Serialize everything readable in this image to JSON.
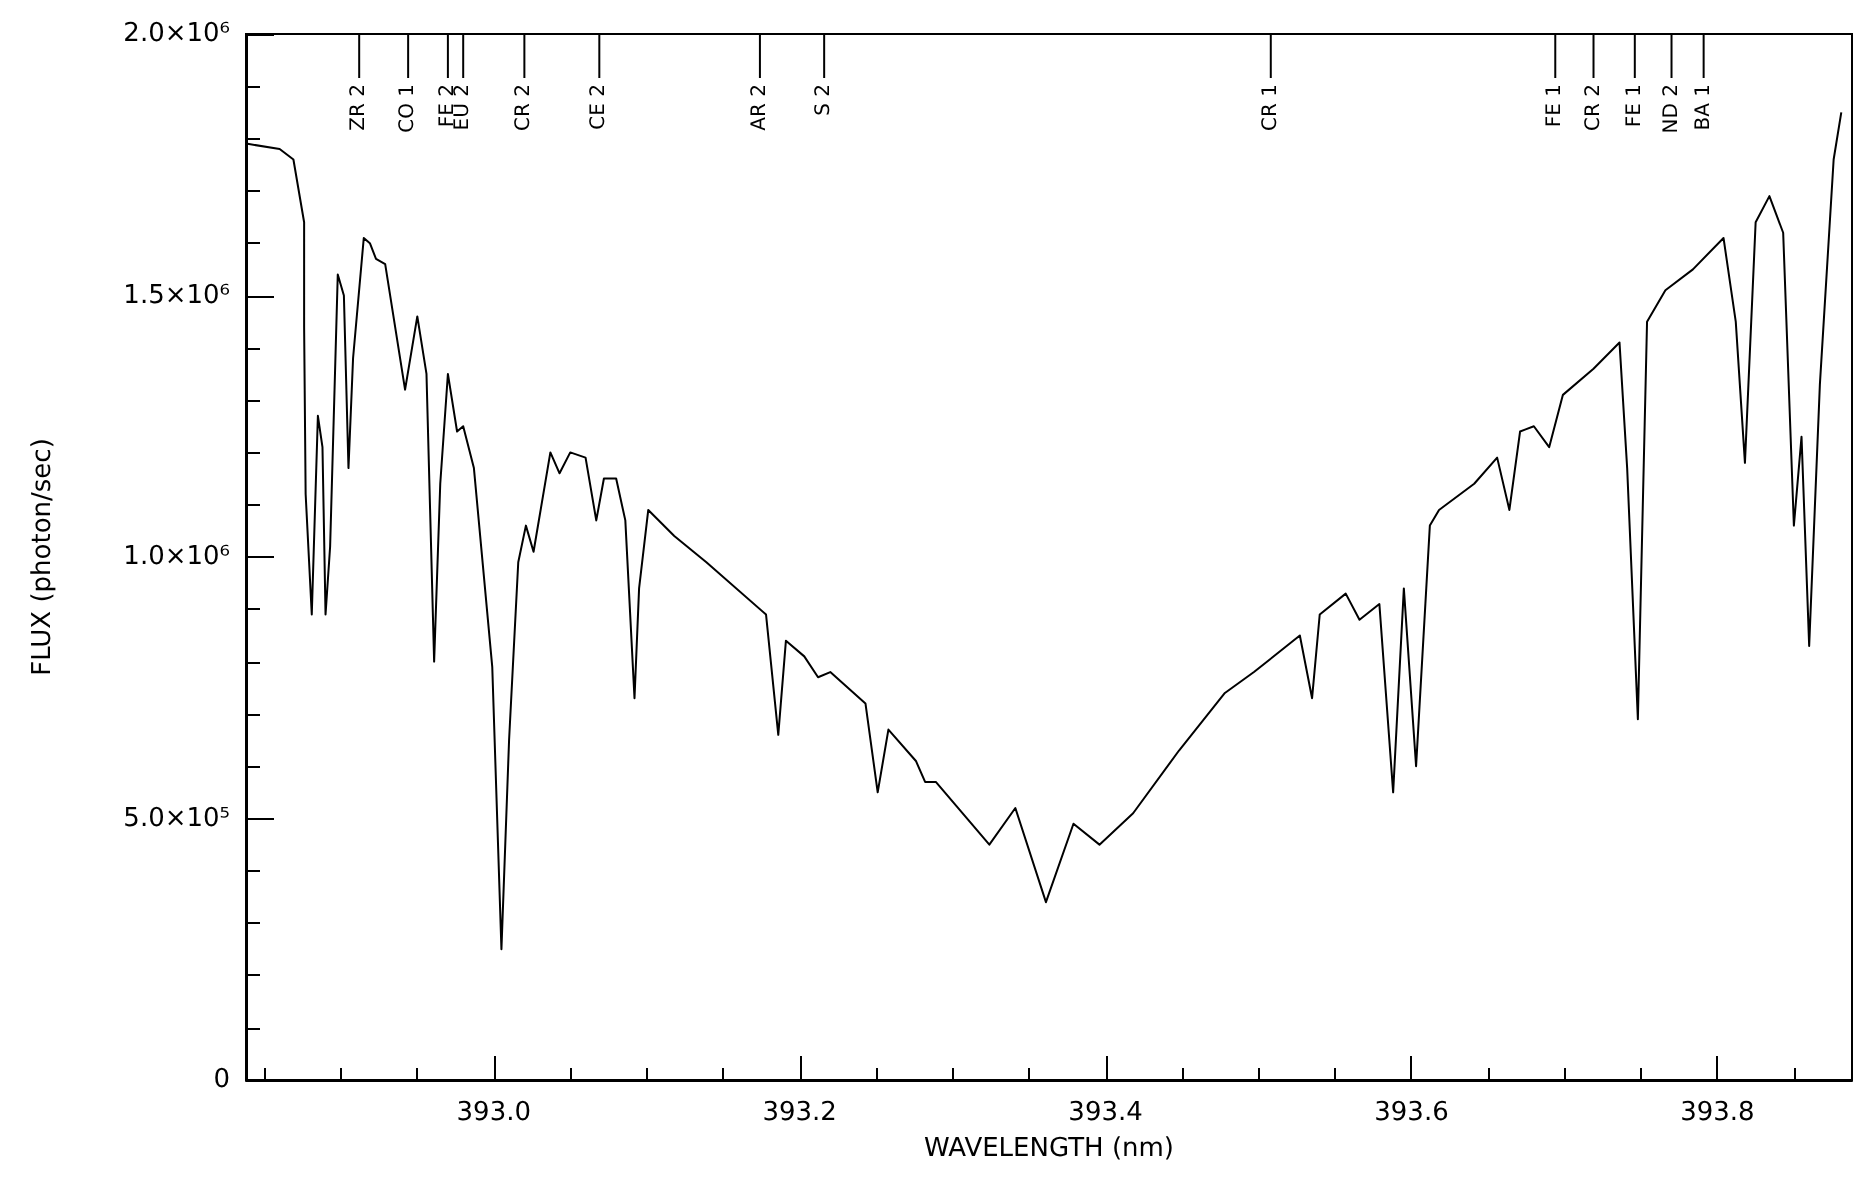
{
  "chart_data": {
    "type": "line",
    "xlabel": "WAVELENGTH (nm)",
    "ylabel": "FLUX (photon/sec)",
    "series": [
      {
        "color": "#000000",
        "x": [
          392.839,
          392.86,
          392.869,
          392.876,
          392.876,
          392.877,
          392.881,
          392.885,
          392.888,
          392.89,
          392.893,
          392.898,
          392.902,
          392.905,
          392.908,
          392.915,
          392.919,
          392.923,
          392.929,
          392.942,
          392.95,
          392.956,
          392.961,
          392.965,
          392.97,
          392.976,
          392.98,
          392.987,
          392.999,
          393.005,
          393.01,
          393.016,
          393.021,
          393.026,
          393.037,
          393.043,
          393.05,
          393.06,
          393.067,
          393.072,
          393.08,
          393.086,
          393.092,
          393.095,
          393.101,
          393.118,
          393.139,
          393.178,
          393.186,
          393.191,
          393.203,
          393.212,
          393.22,
          393.243,
          393.251,
          393.258,
          393.276,
          393.282,
          393.289,
          393.324,
          393.341,
          393.361,
          393.379,
          393.396,
          393.418,
          393.448,
          393.478,
          393.497,
          393.527,
          393.535,
          393.54,
          393.557,
          393.566,
          393.579,
          393.588,
          393.595,
          393.603,
          393.612,
          393.618,
          393.641,
          393.656,
          393.664,
          393.671,
          393.68,
          393.69,
          393.699,
          393.719,
          393.736,
          393.741,
          393.748,
          393.754,
          393.766,
          393.784,
          393.804,
          393.812,
          393.818,
          393.825,
          393.834,
          393.843,
          393.85,
          393.855,
          393.86,
          393.867,
          393.876,
          393.881
        ],
        "values": [
          1790000,
          1780000,
          1760000,
          1640000,
          1440000,
          1120000,
          890000,
          1270000,
          1210000,
          890000,
          1020000,
          1540000,
          1500000,
          1170000,
          1380000,
          1610000,
          1600000,
          1570000,
          1560000,
          1320000,
          1460000,
          1350000,
          800000,
          1140000,
          1350000,
          1240000,
          1250000,
          1170000,
          790000,
          250000,
          650000,
          990000,
          1060000,
          1010000,
          1200000,
          1160000,
          1200000,
          1190000,
          1070000,
          1150000,
          1150000,
          1070000,
          730000,
          940000,
          1090000,
          1040000,
          990000,
          890000,
          660000,
          840000,
          810000,
          770000,
          780000,
          720000,
          550000,
          670000,
          610000,
          570000,
          570000,
          450000,
          520000,
          340000,
          490000,
          450000,
          510000,
          630000,
          740000,
          780000,
          850000,
          730000,
          890000,
          930000,
          880000,
          910000,
          550000,
          940000,
          600000,
          1060000,
          1090000,
          1140000,
          1190000,
          1090000,
          1240000,
          1250000,
          1210000,
          1310000,
          1360000,
          1410000,
          1170000,
          690000,
          1450000,
          1510000,
          1550000,
          1610000,
          1450000,
          1180000,
          1640000,
          1690000,
          1620000,
          1060000,
          1230000,
          830000,
          1330000,
          1760000,
          1850000
        ]
      }
    ],
    "xlim": [
      392.838,
      393.888
    ],
    "xticks": [
      {
        "value": 393.0,
        "label": "393.0"
      },
      393.2,
      393.4,
      393.6,
      393.8
    ],
    "ylim": [
      0,
      2000000
    ],
    "yticks": [
      0,
      {
        "value": 500000,
        "label": "5.0×10⁵"
      },
      {
        "value": 1000000,
        "label": "1.0×10⁶"
      },
      {
        "value": 1500000,
        "label": "1.5×10⁶"
      },
      {
        "value": 2000000,
        "label": "2.0×10⁶"
      }
    ],
    "grid": false,
    "marker": "none",
    "line_style": "solid",
    "ref_lines": [
      {
        "axis": "x",
        "value": 392.912,
        "label": "ZR 2"
      },
      {
        "axis": "x",
        "value": 392.944,
        "label": "CO 1"
      },
      {
        "axis": "x",
        "value": 392.97,
        "label": "FE 2"
      },
      {
        "axis": "x",
        "value": 392.98,
        "label": "EU 2"
      },
      {
        "axis": "x",
        "value": 393.02,
        "label": "CR 2"
      },
      {
        "axis": "x",
        "value": 393.069,
        "label": "CE 2"
      },
      {
        "axis": "x",
        "value": 393.174,
        "label": "AR 2"
      },
      {
        "axis": "x",
        "value": 393.216,
        "label": "S 2"
      },
      {
        "axis": "x",
        "value": 393.508,
        "label": "CR 1"
      },
      {
        "axis": "x",
        "value": 393.694,
        "label": "FE 1"
      },
      {
        "axis": "x",
        "value": 393.719,
        "label": "CR 2"
      },
      {
        "axis": "x",
        "value": 393.746,
        "label": "FE 1"
      },
      {
        "axis": "x",
        "value": 393.77,
        "label": "ND 2"
      },
      {
        "axis": "x",
        "value": 393.791,
        "label": "BA 1"
      }
    ]
  }
}
